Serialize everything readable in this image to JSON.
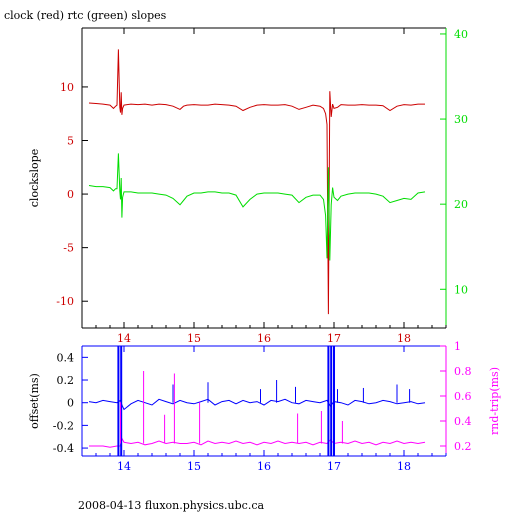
{
  "title": "clock (red) rtc (green) slopes",
  "footer": "2008-04-13 fluxon.physics.ubc.ca",
  "colors": {
    "clock": "#cc0000",
    "rtc": "#00dd00",
    "offset": "#0000ff",
    "rndtrip": "#ff00ff",
    "axis": "#000000"
  },
  "chart_data": [
    {
      "type": "line",
      "title": "clock (red) rtc (green) slopes",
      "xlabel": "",
      "ylabel": "clockslope",
      "y2label": "",
      "xlim": [
        13.4,
        18.6
      ],
      "ylim": [
        -12.5,
        15.5
      ],
      "y2lim": [
        5.45,
        40.7
      ],
      "xticks": [
        "14",
        "15",
        "16",
        "17",
        "18"
      ],
      "yticks": [
        "-10",
        "-5",
        "0",
        "5",
        "10"
      ],
      "y2ticks": [
        "10",
        "20",
        "30",
        "40"
      ],
      "series": [
        {
          "color": "#cc0000",
          "axis": "left",
          "x": [
            13.5,
            13.6,
            13.7,
            13.8,
            13.85,
            13.88,
            13.9,
            13.92,
            13.94,
            13.95,
            13.96,
            13.97,
            13.98,
            14.0,
            14.1,
            14.2,
            14.3,
            14.4,
            14.5,
            14.6,
            14.7,
            14.8,
            14.85,
            14.9,
            15.0,
            15.1,
            15.2,
            15.3,
            15.4,
            15.5,
            15.6,
            15.7,
            15.8,
            15.9,
            16.0,
            16.1,
            16.2,
            16.3,
            16.4,
            16.5,
            16.6,
            16.7,
            16.8,
            16.85,
            16.88,
            16.9,
            16.92,
            16.94,
            16.96,
            16.98,
            17.0,
            17.05,
            17.1,
            17.2,
            17.3,
            17.4,
            17.5,
            17.6,
            17.7,
            17.8,
            17.9,
            18.0,
            18.1,
            18.2,
            18.3
          ],
          "y": [
            8.5,
            8.45,
            8.4,
            8.3,
            8.0,
            8.2,
            8.3,
            13.5,
            8.1,
            7.6,
            9.5,
            7.4,
            8.0,
            8.3,
            8.4,
            8.35,
            8.4,
            8.3,
            8.4,
            8.35,
            8.2,
            7.9,
            8.2,
            8.3,
            8.35,
            8.3,
            8.3,
            8.4,
            8.35,
            8.3,
            8.2,
            7.8,
            8.1,
            8.3,
            8.35,
            8.3,
            8.3,
            8.35,
            8.2,
            7.9,
            8.1,
            8.3,
            8.2,
            8.0,
            7.5,
            6.5,
            -11.2,
            9.6,
            7.2,
            8.4,
            8.0,
            8.1,
            8.35,
            8.3,
            8.3,
            8.35,
            8.3,
            8.3,
            8.25,
            7.8,
            8.2,
            8.35,
            8.3,
            8.4,
            8.4
          ]
        },
        {
          "color": "#00dd00",
          "axis": "left",
          "x": [
            13.5,
            13.6,
            13.7,
            13.8,
            13.85,
            13.88,
            13.9,
            13.92,
            13.94,
            13.95,
            13.96,
            13.97,
            13.98,
            14.0,
            14.1,
            14.2,
            14.3,
            14.4,
            14.5,
            14.6,
            14.7,
            14.8,
            14.85,
            14.9,
            15.0,
            15.1,
            15.2,
            15.3,
            15.4,
            15.5,
            15.6,
            15.7,
            15.8,
            15.9,
            16.0,
            16.1,
            16.2,
            16.3,
            16.4,
            16.5,
            16.6,
            16.7,
            16.8,
            16.85,
            16.88,
            16.9,
            16.92,
            16.94,
            16.96,
            16.98,
            17.0,
            17.05,
            17.1,
            17.2,
            17.3,
            17.4,
            17.5,
            17.6,
            17.7,
            17.8,
            17.9,
            18.0,
            18.1,
            18.2,
            18.3
          ],
          "y": [
            0.8,
            0.7,
            0.7,
            0.6,
            0.3,
            0.5,
            0.5,
            3.8,
            0.3,
            -0.5,
            1.5,
            -2.2,
            -0.3,
            0.2,
            0.2,
            0.1,
            0.1,
            0.1,
            0.0,
            -0.1,
            -0.4,
            -1.0,
            -0.6,
            -0.2,
            0.1,
            0.1,
            0.2,
            0.2,
            0.1,
            0.1,
            -0.1,
            -1.2,
            -0.5,
            0.0,
            0.1,
            0.1,
            0.1,
            0.0,
            -0.1,
            -0.8,
            -0.3,
            -0.1,
            -0.1,
            -0.5,
            -2.0,
            -6.0,
            2.5,
            -6.2,
            -1.0,
            0.6,
            -0.3,
            -0.6,
            -0.2,
            0.0,
            0.1,
            0.1,
            0.1,
            0.0,
            -0.2,
            -0.8,
            -0.6,
            -0.4,
            -0.5,
            0.1,
            0.2
          ]
        }
      ]
    },
    {
      "type": "line",
      "xlabel": "",
      "ylabel": "offset(ms)",
      "y2label": "rnd-trip(ms)",
      "xlim": [
        13.4,
        18.6
      ],
      "ylim": [
        -0.47,
        0.5
      ],
      "y2lim": [
        0.12,
        1.0
      ],
      "xticks": [
        "14",
        "15",
        "16",
        "17",
        "18"
      ],
      "yticks": [
        "-0.4",
        "-0.2",
        "0",
        "0.2",
        "0.4"
      ],
      "y2ticks": [
        "0.2",
        "0.4",
        "0.6",
        "0.8",
        "1"
      ],
      "series": [
        {
          "color": "#0000ff",
          "axis": "left",
          "x": [
            13.5,
            13.6,
            13.7,
            13.8,
            13.9,
            13.95,
            13.97,
            14.0,
            14.1,
            14.2,
            14.3,
            14.4,
            14.5,
            14.6,
            14.7,
            14.8,
            14.9,
            15.0,
            15.1,
            15.2,
            15.3,
            15.4,
            15.5,
            15.6,
            15.7,
            15.8,
            15.9,
            16.0,
            16.1,
            16.2,
            16.3,
            16.4,
            16.5,
            16.6,
            16.7,
            16.8,
            16.9,
            16.95,
            17.0,
            17.1,
            17.2,
            17.3,
            17.4,
            17.5,
            17.6,
            17.7,
            17.8,
            17.9,
            18.0,
            18.1,
            18.2,
            18.3
          ],
          "y": [
            0.01,
            0.0,
            0.02,
            0.01,
            0.0,
            0.02,
            -0.02,
            -0.06,
            -0.01,
            0.02,
            0.0,
            -0.02,
            0.03,
            0.01,
            -0.01,
            0.02,
            0.0,
            -0.01,
            0.01,
            0.03,
            -0.02,
            0.01,
            0.02,
            -0.01,
            0.02,
            0.0,
            0.01,
            -0.02,
            0.02,
            0.01,
            0.03,
            0.0,
            -0.01,
            0.02,
            0.01,
            0.0,
            0.02,
            -0.03,
            0.01,
            0.0,
            -0.02,
            0.02,
            0.01,
            -0.01,
            0.0,
            0.02,
            0.01,
            -0.01,
            0.0,
            0.01,
            -0.01,
            0.0
          ]
        },
        {
          "color": "#ff00ff",
          "axis": "right",
          "x": [
            13.5,
            13.6,
            13.7,
            13.8,
            13.9,
            13.95,
            13.97,
            14.0,
            14.1,
            14.2,
            14.3,
            14.4,
            14.5,
            14.6,
            14.7,
            14.8,
            14.9,
            15.0,
            15.1,
            15.2,
            15.3,
            15.4,
            15.5,
            15.6,
            15.7,
            15.8,
            15.9,
            16.0,
            16.1,
            16.2,
            16.3,
            16.4,
            16.5,
            16.6,
            16.7,
            16.8,
            16.9,
            16.95,
            17.0,
            17.1,
            17.2,
            17.3,
            17.4,
            17.5,
            17.6,
            17.7,
            17.8,
            17.9,
            18.0,
            18.1,
            18.2,
            18.3
          ],
          "y": [
            0.2,
            0.2,
            0.2,
            0.19,
            0.2,
            0.2,
            0.26,
            0.23,
            0.22,
            0.23,
            0.21,
            0.22,
            0.24,
            0.22,
            0.23,
            0.22,
            0.22,
            0.23,
            0.21,
            0.24,
            0.22,
            0.23,
            0.22,
            0.24,
            0.22,
            0.23,
            0.21,
            0.23,
            0.22,
            0.24,
            0.22,
            0.23,
            0.22,
            0.23,
            0.21,
            0.23,
            0.22,
            0.25,
            0.22,
            0.23,
            0.22,
            0.24,
            0.22,
            0.23,
            0.21,
            0.23,
            0.22,
            0.24,
            0.22,
            0.23,
            0.22,
            0.23
          ]
        }
      ],
      "spikes": [
        {
          "color": "#0000ff",
          "axis": "left",
          "x": [
            13.92,
            13.96,
            16.92,
            16.96,
            17.0
          ],
          "to": "full"
        },
        {
          "color": "#ff00ff",
          "axis": "right",
          "x": [
            13.95,
            14.28,
            14.58,
            14.72,
            15.08,
            16.48,
            16.82,
            17.12
          ],
          "y": [
            0.55,
            0.8,
            0.45,
            0.78,
            0.55,
            0.46,
            0.48,
            0.4
          ]
        },
        {
          "color": "#0000ff",
          "axis": "left",
          "x": [
            14.7,
            15.2,
            15.95,
            16.18,
            16.45,
            17.05,
            17.42,
            17.9,
            18.08
          ],
          "y": [
            0.16,
            0.18,
            0.12,
            0.2,
            0.14,
            0.12,
            0.13,
            0.16,
            0.12
          ]
        }
      ]
    }
  ]
}
